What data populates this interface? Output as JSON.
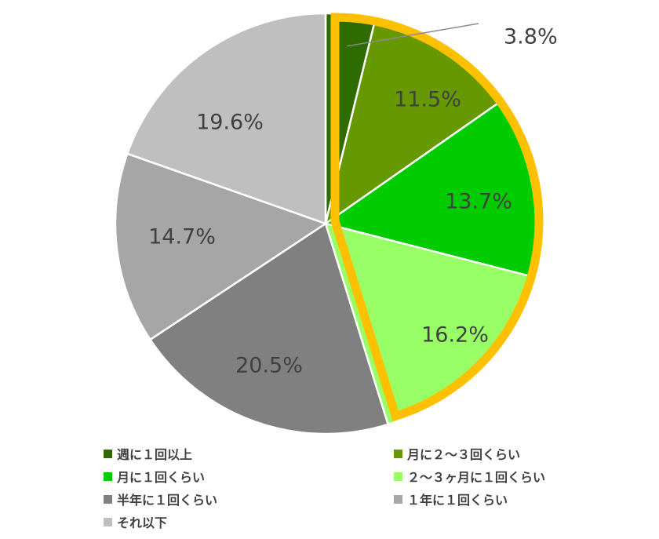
{
  "chart_data": {
    "type": "pie",
    "unit": "%",
    "start_angle_deg": 0,
    "direction": "clockwise",
    "slices": [
      {
        "label": "週に１回以上",
        "value": 3.8,
        "value_label": "3.8%",
        "color": "#2e6b00",
        "highlighted": true
      },
      {
        "label": "月に２～３回くらい",
        "value": 11.5,
        "value_label": "11.5%",
        "color": "#669900",
        "highlighted": true
      },
      {
        "label": "月に１回くらい",
        "value": 13.7,
        "value_label": "13.7%",
        "color": "#00cc00",
        "highlighted": true
      },
      {
        "label": "２～３ヶ月に１回くらい",
        "value": 16.2,
        "value_label": "16.2%",
        "color": "#99ff66",
        "highlighted": true
      },
      {
        "label": "半年に１回くらい",
        "value": 20.5,
        "value_label": "20.5%",
        "color": "#808080",
        "highlighted": false
      },
      {
        "label": "１年に１回くらい",
        "value": 14.7,
        "value_label": "14.7%",
        "color": "#a6a6a6",
        "highlighted": false
      },
      {
        "label": "それ以下",
        "value": 19.6,
        "value_label": "19.6%",
        "color": "#bfbfbf",
        "highlighted": false
      }
    ],
    "highlight_color": "#ffc000",
    "legend_position": "bottom"
  }
}
